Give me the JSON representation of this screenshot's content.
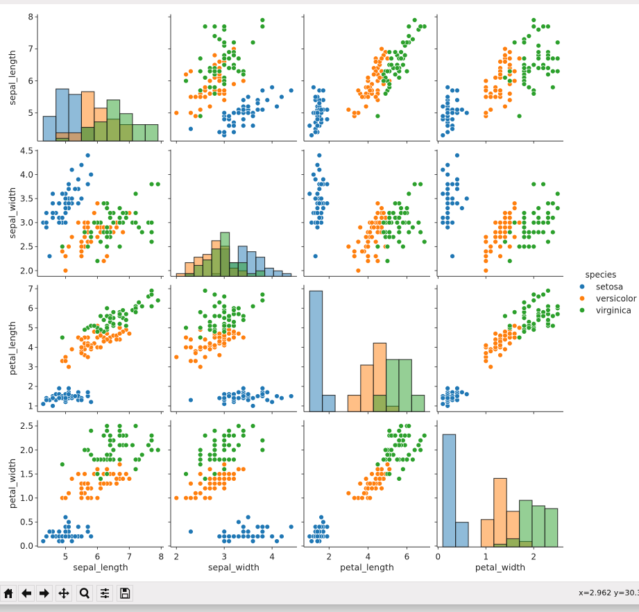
{
  "window": {
    "toolbar": {
      "buttons": [
        {
          "name": "home",
          "icon": "home-icon"
        },
        {
          "name": "back",
          "icon": "arrow-left-icon"
        },
        {
          "name": "forward",
          "icon": "arrow-right-icon"
        },
        {
          "name": "pan",
          "icon": "move-icon"
        },
        {
          "name": "zoom",
          "icon": "magnifier-icon"
        },
        {
          "name": "configure-subplots",
          "icon": "sliders-icon"
        },
        {
          "name": "save",
          "icon": "floppy-disk-icon"
        }
      ],
      "coordinates": "x=2.962 y=30.3"
    }
  },
  "chart_data": {
    "type": "scatter",
    "layout": "pairplot",
    "diagonal_type": "histogram",
    "variables": [
      "sepal_length",
      "sepal_width",
      "petal_length",
      "petal_width"
    ],
    "axis_ranges": {
      "sepal_length": [
        4.12,
        8.08
      ],
      "sepal_width": [
        1.88,
        4.52
      ],
      "petal_length": [
        0.705,
        7.195
      ],
      "petal_width": [
        -0.02,
        2.62
      ]
    },
    "ticks": {
      "sepal_length": {
        "values": [
          5,
          6,
          7,
          8
        ],
        "labels": [
          "5",
          "6",
          "7",
          "8"
        ]
      },
      "sepal_width_y": {
        "values": [
          2.0,
          2.5,
          3.0,
          3.5,
          4.0,
          4.5
        ],
        "labels": [
          "2.0",
          "2.5",
          "3.0",
          "3.5",
          "4.0",
          "4.5"
        ]
      },
      "sepal_width_x": {
        "values": [
          2,
          3,
          4
        ],
        "labels": [
          "2",
          "3",
          "4"
        ]
      },
      "petal_length_y": {
        "values": [
          1,
          2,
          3,
          4,
          5,
          6,
          7
        ],
        "labels": [
          "1",
          "2",
          "3",
          "4",
          "5",
          "6",
          "7"
        ]
      },
      "petal_length_x": {
        "values": [
          2,
          4,
          6
        ],
        "labels": [
          "2",
          "4",
          "6"
        ]
      },
      "petal_width_y": {
        "values": [
          0.0,
          0.5,
          1.0,
          1.5,
          2.0,
          2.5
        ],
        "labels": [
          "0.0",
          "0.5",
          "1.0",
          "1.5",
          "2.0",
          "2.5"
        ]
      },
      "petal_width_x": {
        "values": [
          0,
          1,
          2
        ],
        "labels": [
          "0",
          "1",
          "2"
        ]
      }
    },
    "grid": false,
    "legend": {
      "title": "species",
      "placement": "right",
      "entries": [
        "setosa",
        "versicolor",
        "virginica"
      ]
    },
    "colors": {
      "setosa": "#1f77b4",
      "versicolor": "#ff7f0e",
      "virginica": "#2ca02c"
    },
    "series": [
      {
        "name": "setosa",
        "rows": [
          [
            5.1,
            3.5,
            1.4,
            0.2
          ],
          [
            4.9,
            3.0,
            1.4,
            0.2
          ],
          [
            4.7,
            3.2,
            1.3,
            0.2
          ],
          [
            4.6,
            3.1,
            1.5,
            0.2
          ],
          [
            5.0,
            3.6,
            1.4,
            0.2
          ],
          [
            5.4,
            3.9,
            1.7,
            0.4
          ],
          [
            4.6,
            3.4,
            1.4,
            0.3
          ],
          [
            5.0,
            3.4,
            1.5,
            0.2
          ],
          [
            4.4,
            2.9,
            1.4,
            0.2
          ],
          [
            4.9,
            3.1,
            1.5,
            0.1
          ],
          [
            5.4,
            3.7,
            1.5,
            0.2
          ],
          [
            4.8,
            3.4,
            1.6,
            0.2
          ],
          [
            4.8,
            3.0,
            1.4,
            0.1
          ],
          [
            4.3,
            3.0,
            1.1,
            0.1
          ],
          [
            5.8,
            4.0,
            1.2,
            0.2
          ],
          [
            5.7,
            4.4,
            1.5,
            0.4
          ],
          [
            5.4,
            3.9,
            1.3,
            0.4
          ],
          [
            5.1,
            3.5,
            1.4,
            0.3
          ],
          [
            5.7,
            3.8,
            1.7,
            0.3
          ],
          [
            5.1,
            3.8,
            1.5,
            0.3
          ],
          [
            5.4,
            3.4,
            1.7,
            0.2
          ],
          [
            5.1,
            3.7,
            1.5,
            0.4
          ],
          [
            4.6,
            3.6,
            1.0,
            0.2
          ],
          [
            5.1,
            3.3,
            1.7,
            0.5
          ],
          [
            4.8,
            3.4,
            1.9,
            0.2
          ],
          [
            5.0,
            3.0,
            1.6,
            0.2
          ],
          [
            5.0,
            3.4,
            1.6,
            0.4
          ],
          [
            5.2,
            3.5,
            1.5,
            0.2
          ],
          [
            5.2,
            3.4,
            1.4,
            0.2
          ],
          [
            4.7,
            3.2,
            1.6,
            0.2
          ],
          [
            4.8,
            3.1,
            1.6,
            0.2
          ],
          [
            5.4,
            3.4,
            1.5,
            0.4
          ],
          [
            5.2,
            4.1,
            1.5,
            0.1
          ],
          [
            5.5,
            4.2,
            1.4,
            0.2
          ],
          [
            4.9,
            3.1,
            1.5,
            0.2
          ],
          [
            5.0,
            3.2,
            1.2,
            0.2
          ],
          [
            5.5,
            3.5,
            1.3,
            0.2
          ],
          [
            4.9,
            3.6,
            1.4,
            0.1
          ],
          [
            4.4,
            3.0,
            1.3,
            0.2
          ],
          [
            5.1,
            3.4,
            1.5,
            0.2
          ],
          [
            5.0,
            3.5,
            1.3,
            0.3
          ],
          [
            4.5,
            2.3,
            1.3,
            0.3
          ],
          [
            4.4,
            3.2,
            1.3,
            0.2
          ],
          [
            5.0,
            3.5,
            1.6,
            0.6
          ],
          [
            5.1,
            3.8,
            1.9,
            0.4
          ],
          [
            4.8,
            3.0,
            1.4,
            0.3
          ],
          [
            5.1,
            3.8,
            1.6,
            0.2
          ],
          [
            4.6,
            3.2,
            1.4,
            0.2
          ],
          [
            5.3,
            3.7,
            1.5,
            0.2
          ],
          [
            5.0,
            3.3,
            1.4,
            0.2
          ]
        ]
      },
      {
        "name": "versicolor",
        "rows": [
          [
            7.0,
            3.2,
            4.7,
            1.4
          ],
          [
            6.4,
            3.2,
            4.5,
            1.5
          ],
          [
            6.9,
            3.1,
            4.9,
            1.5
          ],
          [
            5.5,
            2.3,
            4.0,
            1.3
          ],
          [
            6.5,
            2.8,
            4.6,
            1.5
          ],
          [
            5.7,
            2.8,
            4.5,
            1.3
          ],
          [
            6.3,
            3.3,
            4.7,
            1.6
          ],
          [
            4.9,
            2.4,
            3.3,
            1.0
          ],
          [
            6.6,
            2.9,
            4.6,
            1.3
          ],
          [
            5.2,
            2.7,
            3.9,
            1.4
          ],
          [
            5.0,
            2.0,
            3.5,
            1.0
          ],
          [
            5.9,
            3.0,
            4.2,
            1.5
          ],
          [
            6.0,
            2.2,
            4.0,
            1.0
          ],
          [
            6.1,
            2.9,
            4.7,
            1.4
          ],
          [
            5.6,
            2.9,
            3.6,
            1.3
          ],
          [
            6.7,
            3.1,
            4.4,
            1.4
          ],
          [
            5.6,
            3.0,
            4.5,
            1.5
          ],
          [
            5.8,
            2.7,
            4.1,
            1.0
          ],
          [
            6.2,
            2.2,
            4.5,
            1.5
          ],
          [
            5.6,
            2.5,
            3.9,
            1.1
          ],
          [
            5.9,
            3.2,
            4.8,
            1.8
          ],
          [
            6.1,
            2.8,
            4.0,
            1.3
          ],
          [
            6.3,
            2.5,
            4.9,
            1.5
          ],
          [
            6.1,
            2.8,
            4.7,
            1.2
          ],
          [
            6.4,
            2.9,
            4.3,
            1.3
          ],
          [
            6.6,
            3.0,
            4.4,
            1.4
          ],
          [
            6.8,
            2.8,
            4.8,
            1.4
          ],
          [
            6.7,
            3.0,
            5.0,
            1.7
          ],
          [
            6.0,
            2.9,
            4.5,
            1.5
          ],
          [
            5.7,
            2.6,
            3.5,
            1.0
          ],
          [
            5.5,
            2.4,
            3.8,
            1.1
          ],
          [
            5.5,
            2.4,
            3.7,
            1.0
          ],
          [
            5.8,
            2.7,
            3.9,
            1.2
          ],
          [
            6.0,
            2.7,
            5.1,
            1.6
          ],
          [
            5.4,
            3.0,
            4.5,
            1.5
          ],
          [
            6.0,
            3.4,
            4.5,
            1.6
          ],
          [
            6.7,
            3.1,
            4.7,
            1.5
          ],
          [
            6.3,
            2.3,
            4.4,
            1.3
          ],
          [
            5.6,
            3.0,
            4.1,
            1.3
          ],
          [
            5.5,
            2.5,
            4.0,
            1.3
          ],
          [
            5.5,
            2.6,
            4.4,
            1.2
          ],
          [
            6.1,
            3.0,
            4.6,
            1.4
          ],
          [
            5.8,
            2.6,
            4.0,
            1.2
          ],
          [
            5.0,
            2.3,
            3.3,
            1.0
          ],
          [
            5.6,
            2.7,
            4.2,
            1.3
          ],
          [
            5.7,
            3.0,
            4.2,
            1.2
          ],
          [
            5.7,
            2.9,
            4.2,
            1.3
          ],
          [
            6.2,
            2.9,
            4.3,
            1.3
          ],
          [
            5.1,
            2.5,
            3.0,
            1.1
          ],
          [
            5.7,
            2.8,
            4.1,
            1.3
          ]
        ]
      },
      {
        "name": "virginica",
        "rows": [
          [
            6.3,
            3.3,
            6.0,
            2.5
          ],
          [
            5.8,
            2.7,
            5.1,
            1.9
          ],
          [
            7.1,
            3.0,
            5.9,
            2.1
          ],
          [
            6.3,
            2.9,
            5.6,
            1.8
          ],
          [
            6.5,
            3.0,
            5.8,
            2.2
          ],
          [
            7.6,
            3.0,
            6.6,
            2.1
          ],
          [
            4.9,
            2.5,
            4.5,
            1.7
          ],
          [
            7.3,
            2.9,
            6.3,
            1.8
          ],
          [
            6.7,
            2.5,
            5.8,
            1.8
          ],
          [
            7.2,
            3.6,
            6.1,
            2.5
          ],
          [
            6.5,
            3.2,
            5.1,
            2.0
          ],
          [
            6.4,
            2.7,
            5.3,
            1.9
          ],
          [
            6.8,
            3.0,
            5.5,
            2.1
          ],
          [
            5.7,
            2.5,
            5.0,
            2.0
          ],
          [
            5.8,
            2.8,
            5.1,
            2.4
          ],
          [
            6.4,
            3.2,
            5.3,
            2.3
          ],
          [
            6.5,
            3.0,
            5.5,
            1.8
          ],
          [
            7.7,
            3.8,
            6.7,
            2.2
          ],
          [
            7.7,
            2.6,
            6.9,
            2.3
          ],
          [
            6.0,
            2.2,
            5.0,
            1.5
          ],
          [
            6.9,
            3.2,
            5.7,
            2.3
          ],
          [
            5.6,
            2.8,
            4.9,
            2.0
          ],
          [
            7.7,
            2.8,
            6.7,
            2.0
          ],
          [
            6.3,
            2.7,
            4.9,
            1.8
          ],
          [
            6.7,
            3.3,
            5.7,
            2.1
          ],
          [
            7.2,
            3.2,
            6.0,
            1.8
          ],
          [
            6.2,
            2.8,
            4.8,
            1.8
          ],
          [
            6.1,
            3.0,
            4.9,
            1.8
          ],
          [
            6.4,
            2.8,
            5.6,
            2.1
          ],
          [
            7.2,
            3.0,
            5.8,
            1.6
          ],
          [
            7.4,
            2.8,
            6.1,
            1.9
          ],
          [
            7.9,
            3.8,
            6.4,
            2.0
          ],
          [
            6.4,
            2.8,
            5.6,
            2.2
          ],
          [
            6.3,
            2.8,
            5.1,
            1.5
          ],
          [
            6.1,
            2.6,
            5.6,
            1.4
          ],
          [
            7.7,
            3.0,
            6.1,
            2.3
          ],
          [
            6.3,
            3.4,
            5.6,
            2.4
          ],
          [
            6.4,
            3.1,
            5.5,
            1.8
          ],
          [
            6.0,
            3.0,
            4.8,
            1.8
          ],
          [
            6.9,
            3.1,
            5.4,
            2.1
          ],
          [
            6.7,
            3.1,
            5.6,
            2.4
          ],
          [
            6.9,
            3.1,
            5.1,
            2.3
          ],
          [
            5.8,
            2.7,
            5.1,
            1.9
          ],
          [
            6.8,
            3.2,
            5.9,
            2.3
          ],
          [
            6.7,
            3.3,
            5.7,
            2.5
          ],
          [
            6.7,
            3.0,
            5.2,
            2.3
          ],
          [
            6.3,
            2.5,
            5.0,
            1.9
          ],
          [
            6.5,
            3.0,
            5.2,
            2.0
          ],
          [
            6.2,
            3.4,
            5.4,
            2.3
          ],
          [
            5.9,
            3.0,
            5.1,
            1.8
          ]
        ]
      }
    ]
  }
}
